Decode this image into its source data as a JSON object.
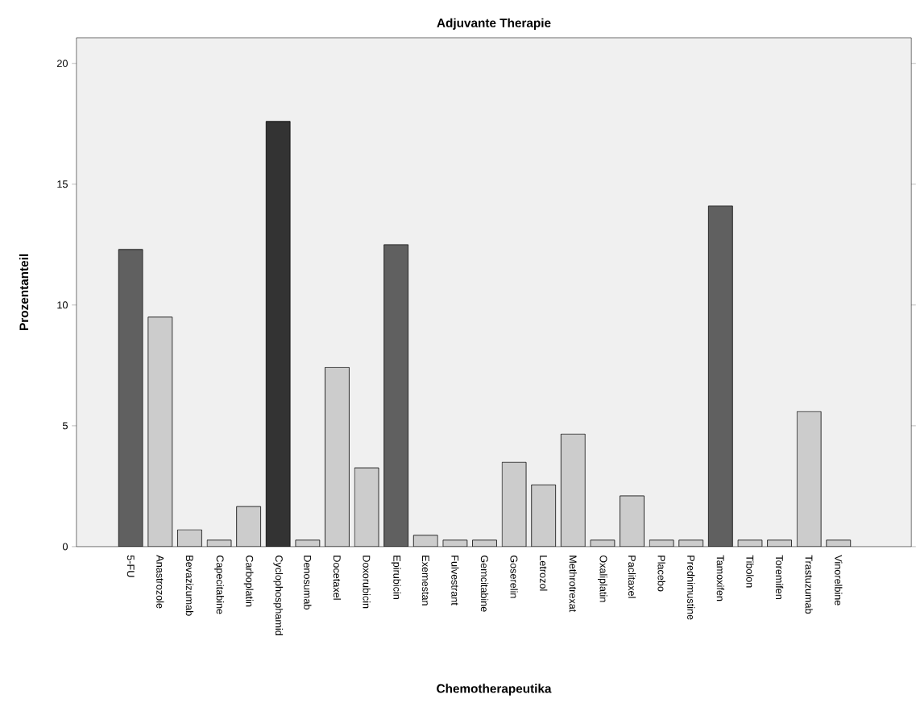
{
  "chart_data": {
    "type": "bar",
    "title": "Adjuvante Therapie",
    "xlabel": "Chemotherapeutika",
    "ylabel": "Prozentanteil",
    "categories": [
      "5-FU",
      "Anastrozole",
      "Bevazizumab",
      "Capecitabine",
      "Carboplatin",
      "Cyclophosphamid",
      "Denosumab",
      "Docetaxel",
      "Doxorubicin",
      "Epirubicin",
      "Exemestan",
      "Fulvestrant",
      "Gemcitabine",
      "Goserelin",
      "Letrozol",
      "Methrotrexat",
      "Oxaliplatin",
      "Paclitaxel",
      "Placebo",
      "Prednimustine",
      "Tamoxifen",
      "Tibolon",
      "Toremifen",
      "Trastuzumab",
      "Vinorelbine"
    ],
    "values": [
      12.3,
      9.5,
      0.7,
      0.27,
      1.66,
      17.6,
      0.27,
      7.42,
      3.26,
      12.5,
      0.47,
      0.27,
      0.27,
      3.49,
      2.56,
      4.66,
      0.27,
      2.1,
      0.27,
      0.27,
      14.1,
      0.27,
      0.27,
      5.59,
      0.27
    ],
    "colors": [
      "#606060",
      "#cccccc",
      "#cccccc",
      "#cccccc",
      "#cccccc",
      "#333333",
      "#cccccc",
      "#cccccc",
      "#cccccc",
      "#606060",
      "#cccccc",
      "#cccccc",
      "#cccccc",
      "#cccccc",
      "#cccccc",
      "#cccccc",
      "#cccccc",
      "#cccccc",
      "#cccccc",
      "#cccccc",
      "#606060",
      "#cccccc",
      "#cccccc",
      "#cccccc",
      "#cccccc"
    ],
    "ylim": [
      0,
      21.06
    ],
    "yticks": [
      0,
      5,
      10,
      15,
      20
    ]
  }
}
